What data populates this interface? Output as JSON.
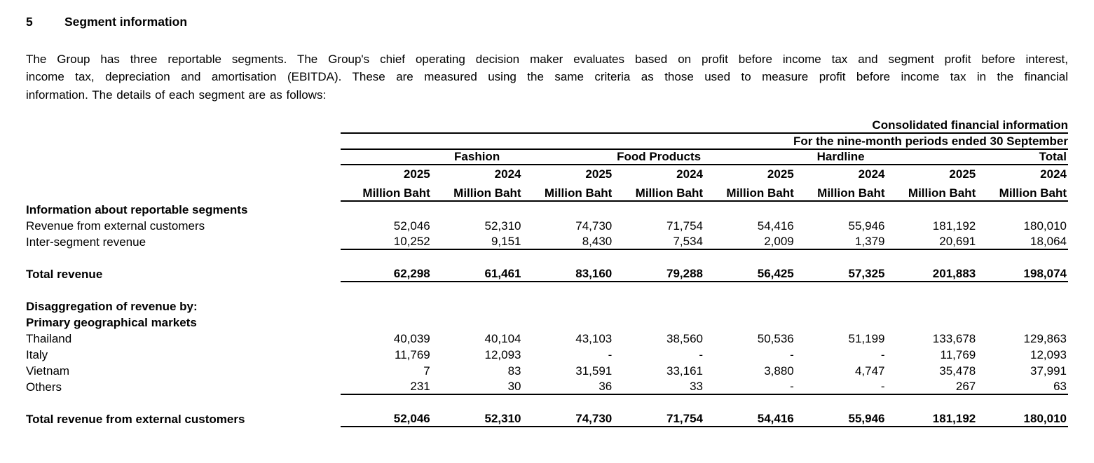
{
  "doc": {
    "section_number": "5",
    "section_title": "Segment information"
  },
  "paragraph": {
    "lines": [
      "The Group has three reportable segments. The Group's chief operating decision maker evaluates based on profit before income tax and segment profit before interest,",
      "income tax, depreciation and amortisation (EBITDA). These are measured using the same criteria as those used to measure profit before income tax in the financial",
      "information. The details of each segment are as follows:"
    ]
  },
  "table": {
    "header1": "Consolidated financial information",
    "header2": "For the nine-month periods ended 30 September",
    "groups": [
      "Fashion",
      "Food Products",
      "Hardline",
      "Total"
    ],
    "years": [
      "2025",
      "2024",
      "2025",
      "2024",
      "2025",
      "2024",
      "2025",
      "2024"
    ],
    "unit": "Million Baht",
    "rows": [
      {
        "label": "Information about reportable segments",
        "bold": true
      },
      {
        "label": "Revenue from external customers",
        "values": [
          "52,046",
          "52,310",
          "74,730",
          "71,754",
          "54,416",
          "55,946",
          "181,192",
          "180,010"
        ]
      },
      {
        "label": "Inter-segment revenue",
        "underline": true,
        "values": [
          "10,252",
          "9,151",
          "8,430",
          "7,534",
          "2,009",
          "1,379",
          "20,691",
          "18,064"
        ]
      },
      {
        "spacer": true
      },
      {
        "label": "Total revenue",
        "bold": true,
        "underline": true,
        "values": [
          "62,298",
          "61,461",
          "83,160",
          "79,288",
          "56,425",
          "57,325",
          "201,883",
          "198,074"
        ]
      },
      {
        "spacer": true
      },
      {
        "label": "Disaggregation of revenue by:",
        "bold": true
      },
      {
        "label": "Primary geographical markets",
        "bold": true
      },
      {
        "label": "Thailand",
        "values": [
          "40,039",
          "40,104",
          "43,103",
          "38,560",
          "50,536",
          "51,199",
          "133,678",
          "129,863"
        ]
      },
      {
        "label": "Italy",
        "values": [
          "11,769",
          "12,093",
          "-",
          "-",
          "-",
          "-",
          "11,769",
          "12,093"
        ]
      },
      {
        "label": "Vietnam",
        "values": [
          "7",
          "83",
          "31,591",
          "33,161",
          "3,880",
          "4,747",
          "35,478",
          "37,991"
        ]
      },
      {
        "label": "Others",
        "underline": true,
        "values": [
          "231",
          "30",
          "36",
          "33",
          "-",
          "-",
          "267",
          "63"
        ]
      },
      {
        "spacer": true
      },
      {
        "label": "Total revenue from external customers",
        "bold": true,
        "underline": true,
        "values": [
          "52,046",
          "52,310",
          "74,730",
          "71,754",
          "54,416",
          "55,946",
          "181,192",
          "180,010"
        ]
      }
    ]
  }
}
